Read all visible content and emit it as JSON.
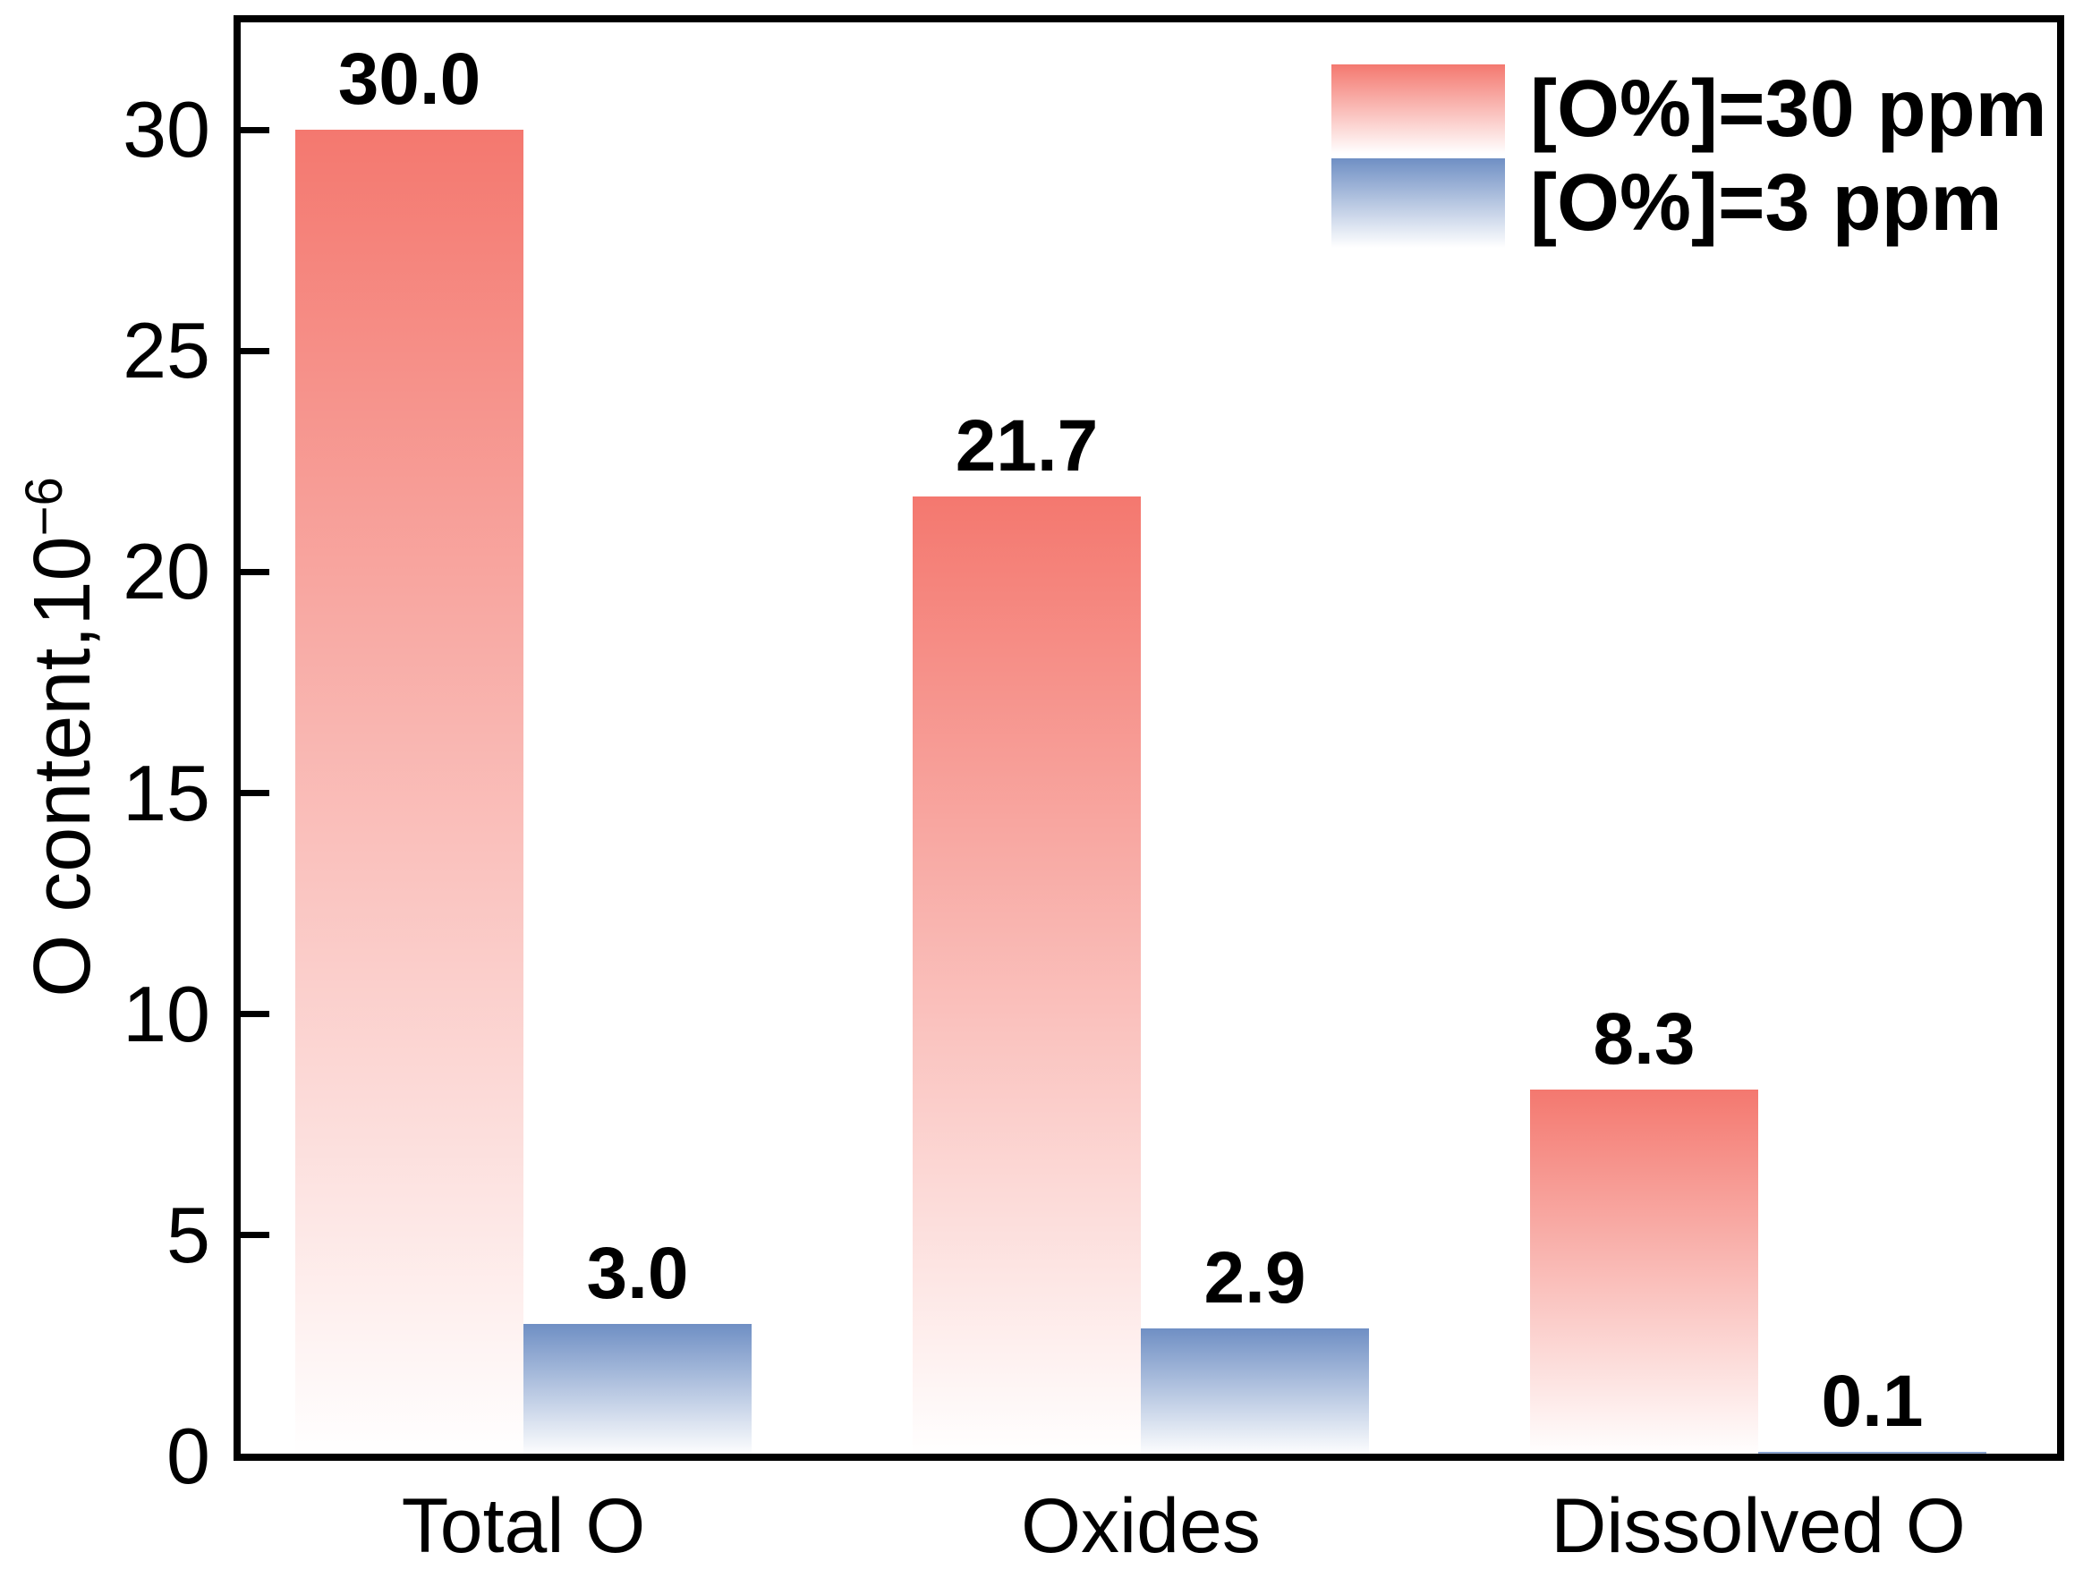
{
  "chart_data": {
    "type": "bar",
    "title": "",
    "categories": [
      "Total O",
      "Oxides",
      "Dissolved O"
    ],
    "series": [
      {
        "name": "[O%]=30 ppm",
        "color": "#f4786f",
        "gradient": "top color fading to white at bar bottom",
        "values": [
          30.0,
          21.7,
          8.3
        ],
        "labels": [
          "30.0",
          "21.7",
          "8.3"
        ]
      },
      {
        "name": "[O%]=3 ppm",
        "color": "#6f8fc4",
        "gradient": "top color fading to white at bar bottom",
        "values": [
          3.0,
          2.9,
          0.1
        ],
        "labels": [
          "3.0",
          "2.9",
          "0.1"
        ]
      }
    ],
    "xlabel": "",
    "ylabel": "O content,10⁻⁶",
    "ylabel_main": "O content,10",
    "ylabel_sup": "−6",
    "ylim": [
      0,
      32.5
    ],
    "yticks": [
      0,
      5,
      10,
      15,
      20,
      25,
      30
    ],
    "grid": false,
    "legend_position": "upper right",
    "legend_frame": false,
    "bar_value_labels_bold": true,
    "axis_color": "#000000",
    "background_color": "#ffffff"
  }
}
